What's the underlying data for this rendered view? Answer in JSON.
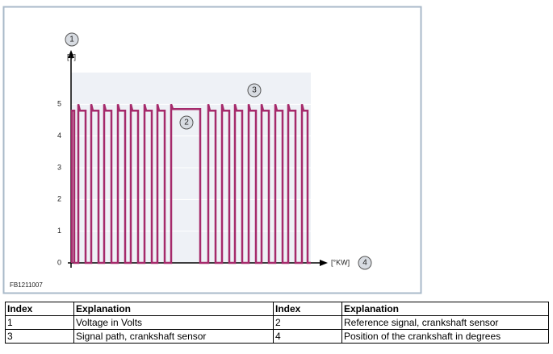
{
  "figure_id": "FB1211007",
  "chart_data": {
    "type": "line",
    "y_label": "[V]",
    "x_label": "[°KW]",
    "callouts": [
      "1",
      "2",
      "3",
      "4"
    ],
    "ylim": [
      0,
      6
    ],
    "yticks": [
      0,
      1,
      2,
      3,
      4,
      5
    ],
    "xlim": [
      0,
      312
    ],
    "grid": true,
    "series": [
      {
        "color": "#a52a6b",
        "x": [
          1,
          1,
          4,
          4,
          9,
          9,
          11,
          18,
          18,
          25,
          25,
          27,
          34,
          34,
          41,
          41,
          43,
          50,
          50,
          58,
          58,
          60,
          67,
          67,
          74,
          74,
          76,
          83,
          83,
          91,
          91,
          93,
          100,
          100,
          107,
          107,
          109,
          116,
          116,
          124,
          124,
          126,
          160,
          160,
          170,
          170,
          172,
          179,
          179,
          187,
          187,
          189,
          196,
          196,
          203,
          203,
          205,
          212,
          212,
          220,
          220,
          222,
          229,
          229,
          236,
          236,
          238,
          245,
          245,
          253,
          253,
          255,
          262,
          262,
          269,
          269,
          271,
          278,
          278,
          286,
          286,
          288,
          293,
          293,
          297
        ],
        "values": [
          0,
          4.8,
          4.8,
          0,
          0,
          5,
          4.8,
          4.8,
          0,
          0,
          5,
          4.8,
          4.8,
          0,
          0,
          5,
          4.8,
          4.8,
          0,
          0,
          5,
          4.8,
          4.8,
          0,
          0,
          5,
          4.8,
          4.8,
          0,
          0,
          5,
          4.8,
          4.8,
          0,
          0,
          5,
          4.8,
          4.8,
          0,
          0,
          5,
          4.85,
          4.85,
          0,
          0,
          5,
          4.8,
          4.8,
          0,
          0,
          5,
          4.8,
          4.8,
          0,
          0,
          5,
          4.8,
          4.8,
          0,
          0,
          5,
          4.8,
          4.8,
          0,
          0,
          5,
          4.8,
          4.8,
          0,
          0,
          5,
          4.8,
          4.8,
          0,
          0,
          5,
          4.8,
          4.8,
          0,
          0,
          5,
          4.8,
          4.8,
          0,
          0
        ]
      }
    ]
  },
  "table": {
    "header": [
      "Index",
      "Explanation",
      "Index",
      "Explanation"
    ],
    "rows": [
      [
        "1",
        "Voltage in Volts",
        "2",
        "Reference signal, crankshaft sensor"
      ],
      [
        "3",
        "Signal path, crankshaft sensor",
        "4",
        "Position of the crankshaft in degrees"
      ]
    ]
  }
}
